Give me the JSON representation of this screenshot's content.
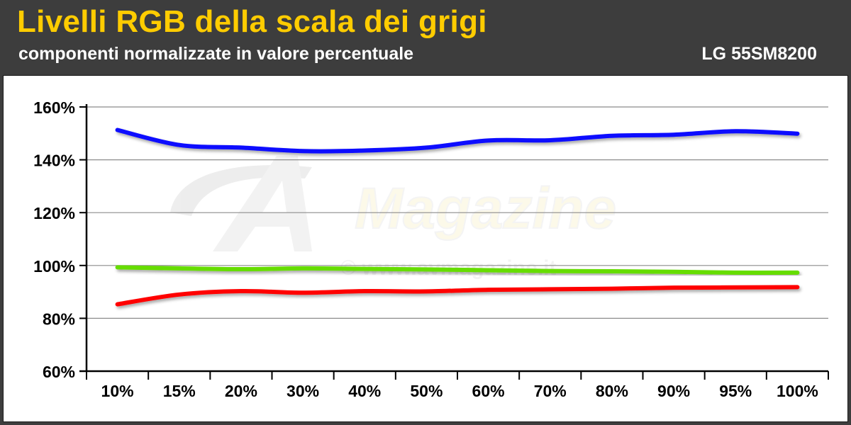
{
  "header": {
    "title": "Livelli RGB della scala dei grigi",
    "subtitle": "componenti normalizzate in valore percentuale",
    "model": "LG 55SM8200"
  },
  "watermark": {
    "logo_text": "Magazine",
    "url": "© www.avmagazine.it"
  },
  "chart_data": {
    "type": "line",
    "title": "Livelli RGB della scala dei grigi",
    "subtitle": "componenti normalizzate in valore percentuale",
    "categories": [
      "10%",
      "15%",
      "20%",
      "30%",
      "40%",
      "50%",
      "60%",
      "70%",
      "80%",
      "90%",
      "95%",
      "100%"
    ],
    "ylim": [
      60,
      160
    ],
    "y_ticks": [
      60,
      80,
      100,
      120,
      140,
      160
    ],
    "y_tick_labels": [
      "60%",
      "80%",
      "100%",
      "120%",
      "140%",
      "160%"
    ],
    "grid": true,
    "legend": "none",
    "series": [
      {
        "color": "#0a0aff",
        "values": [
          151.3,
          145.6,
          144.6,
          143.3,
          143.5,
          144.6,
          147.3,
          147.4,
          149.1,
          149.5,
          150.8,
          149.9
        ]
      },
      {
        "color": "#66dd00",
        "values": [
          99.3,
          98.9,
          98.6,
          98.9,
          98.7,
          98.5,
          98.2,
          97.9,
          97.8,
          97.6,
          97.3,
          97.3
        ]
      },
      {
        "color": "#ff0000",
        "values": [
          85.3,
          89.0,
          90.3,
          89.7,
          90.3,
          90.2,
          90.8,
          91.0,
          91.2,
          91.6,
          91.7,
          91.8
        ]
      }
    ]
  }
}
